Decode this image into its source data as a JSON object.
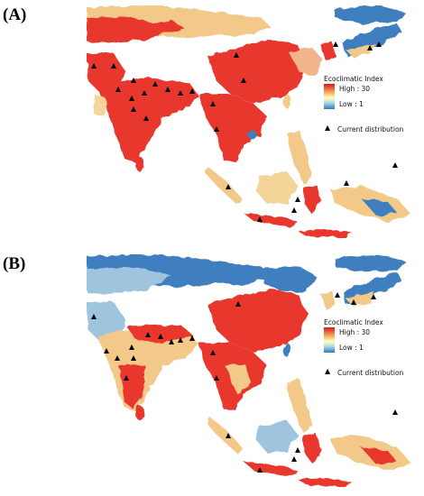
{
  "panels": [
    {
      "label": "(A)",
      "legend": {
        "title": "Ecoclimatic Index",
        "high": "High : 30",
        "low": "Low : 1",
        "distribution": "Current distribution"
      },
      "colors": {
        "high": "#e8392f",
        "mid": "#f7d98a",
        "low": "#3f7fbf",
        "land": "#ffffff"
      }
    },
    {
      "label": "(B)",
      "legend": {
        "title": "Ecoclimatic Index",
        "high": "High : 30",
        "low": "Low : 1",
        "distribution": "Current distribution"
      },
      "colors": {
        "high": "#e8392f",
        "mid": "#f7d98a",
        "low": "#3f7fbf",
        "land": "#ffffff"
      }
    }
  ],
  "icons": {
    "distribution_marker": "triangle-icon"
  }
}
